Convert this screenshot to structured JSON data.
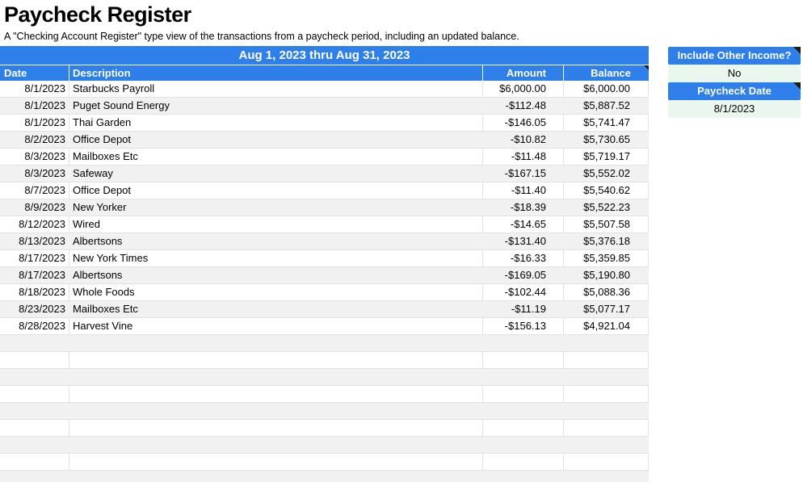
{
  "page": {
    "title": "Paycheck Register",
    "subtitle": "A \"Checking Account Register\" type view of the transactions from a paycheck period, including an updated balance."
  },
  "register": {
    "period_label": "Aug 1, 2023 thru Aug 31, 2023",
    "columns": [
      "Date",
      "Description",
      "Amount",
      "Balance"
    ],
    "transactions": [
      {
        "date": "8/1/2023",
        "description": "Starbucks Payroll",
        "amount": "$6,000.00",
        "balance": "$6,000.00"
      },
      {
        "date": "8/1/2023",
        "description": "Puget Sound Energy",
        "amount": "-$112.48",
        "balance": "$5,887.52"
      },
      {
        "date": "8/1/2023",
        "description": "Thai Garden",
        "amount": "-$146.05",
        "balance": "$5,741.47"
      },
      {
        "date": "8/2/2023",
        "description": "Office Depot",
        "amount": "-$10.82",
        "balance": "$5,730.65"
      },
      {
        "date": "8/3/2023",
        "description": "Mailboxes Etc",
        "amount": "-$11.48",
        "balance": "$5,719.17"
      },
      {
        "date": "8/3/2023",
        "description": "Safeway",
        "amount": "-$167.15",
        "balance": "$5,552.02"
      },
      {
        "date": "8/7/2023",
        "description": "Office Depot",
        "amount": "-$11.40",
        "balance": "$5,540.62"
      },
      {
        "date": "8/9/2023",
        "description": "New Yorker",
        "amount": "-$18.39",
        "balance": "$5,522.23"
      },
      {
        "date": "8/12/2023",
        "description": "Wired",
        "amount": "-$14.65",
        "balance": "$5,507.58"
      },
      {
        "date": "8/13/2023",
        "description": "Albertsons",
        "amount": "-$131.40",
        "balance": "$5,376.18"
      },
      {
        "date": "8/17/2023",
        "description": "New York Times",
        "amount": "-$16.33",
        "balance": "$5,359.85"
      },
      {
        "date": "8/17/2023",
        "description": "Albertsons",
        "amount": "-$169.05",
        "balance": "$5,190.80"
      },
      {
        "date": "8/18/2023",
        "description": "Whole Foods",
        "amount": "-$102.44",
        "balance": "$5,088.36"
      },
      {
        "date": "8/23/2023",
        "description": "Mailboxes Etc",
        "amount": "-$11.19",
        "balance": "$5,077.17"
      },
      {
        "date": "8/28/2023",
        "description": "Harvest Vine",
        "amount": "-$156.13",
        "balance": "$4,921.04"
      }
    ],
    "empty_row_count": 9
  },
  "side_panel": {
    "other_income_label": "Include Other Income?",
    "other_income_value": "No",
    "paycheck_date_label": "Paycheck Date",
    "paycheck_date_value": "8/1/2023"
  },
  "icons": {
    "note_marker": "corner-note-triangle"
  },
  "colors": {
    "header_blue": "#2e7fe9",
    "value_green": "#e9f7ef",
    "row_alt_gray": "#f1f1f1",
    "grid_line": "#e2e2e2",
    "note_marker": "#1c1c1c"
  }
}
